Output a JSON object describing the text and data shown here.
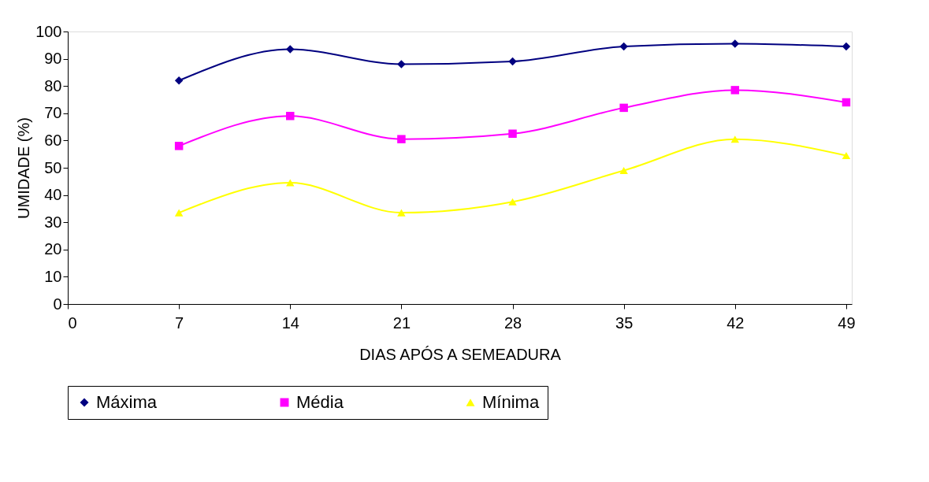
{
  "chart_data": {
    "type": "line",
    "xlabel": "DIAS APÓS A SEMEADURA",
    "ylabel": "UMIDADE (%)",
    "x": [
      7,
      14,
      21,
      28,
      35,
      42,
      49
    ],
    "series": [
      {
        "name": "Máxima",
        "color": "#000080",
        "marker": "diamond",
        "values": [
          82,
          93.5,
          88,
          89,
          94.5,
          95.5,
          94.5
        ]
      },
      {
        "name": "Média",
        "color": "#ff00ff",
        "marker": "square",
        "values": [
          58,
          69,
          60.5,
          62.5,
          72,
          78.5,
          74
        ]
      },
      {
        "name": "Mínima",
        "color": "#ffff00",
        "marker": "triangle",
        "values": [
          33.5,
          44.5,
          33.5,
          37.5,
          49,
          60.5,
          54.5
        ]
      }
    ],
    "xlim": [
      0,
      49.35
    ],
    "xticks": [
      0,
      7,
      14,
      21,
      28,
      35,
      42,
      49
    ],
    "ylim": [
      0,
      100
    ],
    "yticks": [
      0,
      10,
      20,
      30,
      40,
      50,
      60,
      70,
      80,
      90,
      100
    ],
    "grid": false,
    "legend": "bottom",
    "line_style": "solid"
  }
}
